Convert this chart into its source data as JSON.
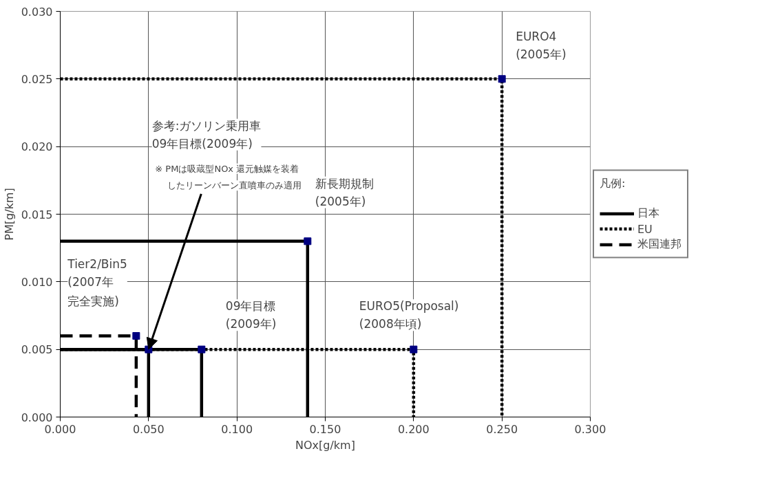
{
  "chart_data": {
    "type": "line",
    "xlabel": "NOx[g/km]",
    "ylabel": "PM[g/km]",
    "legend_title": "凡例:",
    "legend": "right",
    "grid": true,
    "xlim": [
      0,
      0.3
    ],
    "ylim": [
      0,
      0.03
    ],
    "xticks": [
      {
        "value": 0,
        "label": "0.000"
      },
      {
        "value": 0.05,
        "label": "0.050"
      },
      {
        "value": 0.1,
        "label": "0.100"
      },
      {
        "value": 0.15,
        "label": "0.150"
      },
      {
        "value": 0.2,
        "label": "0.200"
      },
      {
        "value": 0.25,
        "label": "0.250"
      },
      {
        "value": 0.3,
        "label": "0.300"
      }
    ],
    "yticks": [
      {
        "value": 0,
        "label": "0.000"
      },
      {
        "value": 0.005,
        "label": "0.005"
      },
      {
        "value": 0.01,
        "label": "0.010"
      },
      {
        "value": 0.015,
        "label": "0.015"
      },
      {
        "value": 0.02,
        "label": "0.020"
      },
      {
        "value": 0.025,
        "label": "0.025"
      },
      {
        "value": 0.03,
        "label": "0.030"
      }
    ],
    "series": [
      {
        "name": "日本",
        "line_style": "solid",
        "color": "#000000",
        "x": [
          0,
          0.14,
          0.14
        ],
        "values": [
          0.013,
          0.013,
          0
        ]
      },
      {
        "line_style": "solid",
        "color": "#000000",
        "x": [
          0,
          0.08,
          0.08
        ],
        "values": [
          0.005,
          0.005,
          0
        ]
      },
      {
        "line_style": "solid",
        "color": "#000000",
        "x": [
          0,
          0.05,
          0.05
        ],
        "values": [
          0.005,
          0.005,
          0
        ]
      },
      {
        "name": "EU",
        "line_style": "dotted",
        "color": "#000000",
        "x": [
          0,
          0.25,
          0.25
        ],
        "values": [
          0.025,
          0.025,
          0
        ]
      },
      {
        "line_style": "dotted",
        "color": "#000000",
        "x": [
          0,
          0.2,
          0.2
        ],
        "values": [
          0.005,
          0.005,
          0
        ]
      },
      {
        "name": "米国連邦",
        "line_style": "dashed",
        "color": "#000000",
        "x": [
          0,
          0.043,
          0.043
        ],
        "values": [
          0.006,
          0.006,
          0
        ]
      },
      {
        "type": "scatter",
        "marker": "square",
        "color": "#000080",
        "x": [
          0.25,
          0.14,
          0.2,
          0.08,
          0.043,
          0.05
        ],
        "values": [
          0.025,
          0.013,
          0.005,
          0.005,
          0.006,
          0.005
        ]
      }
    ],
    "annotations": [
      {
        "text": "EURO4\n(2005年)",
        "x": 0.25,
        "y": 0.025
      },
      {
        "text": "新長期規制\n(2005年)",
        "x": 0.14,
        "y": 0.013
      },
      {
        "text": "EURO5(Proposal)\n(2008年頃)",
        "x": 0.2,
        "y": 0.005
      },
      {
        "text": "09年目標\n(2009年)",
        "x": 0.08,
        "y": 0.005
      },
      "Tier2/Bin5\n(2007年",
      "完全実施)",
      "参考:ガソリン乗用車\n09年目標(2009年)",
      "※ PMは吸蔵型NOx 還元触媒を装着",
      {
        "text": "したリーンバーン直噴車のみ適用",
        "x": 0.05,
        "y": 0.005
      }
    ]
  }
}
